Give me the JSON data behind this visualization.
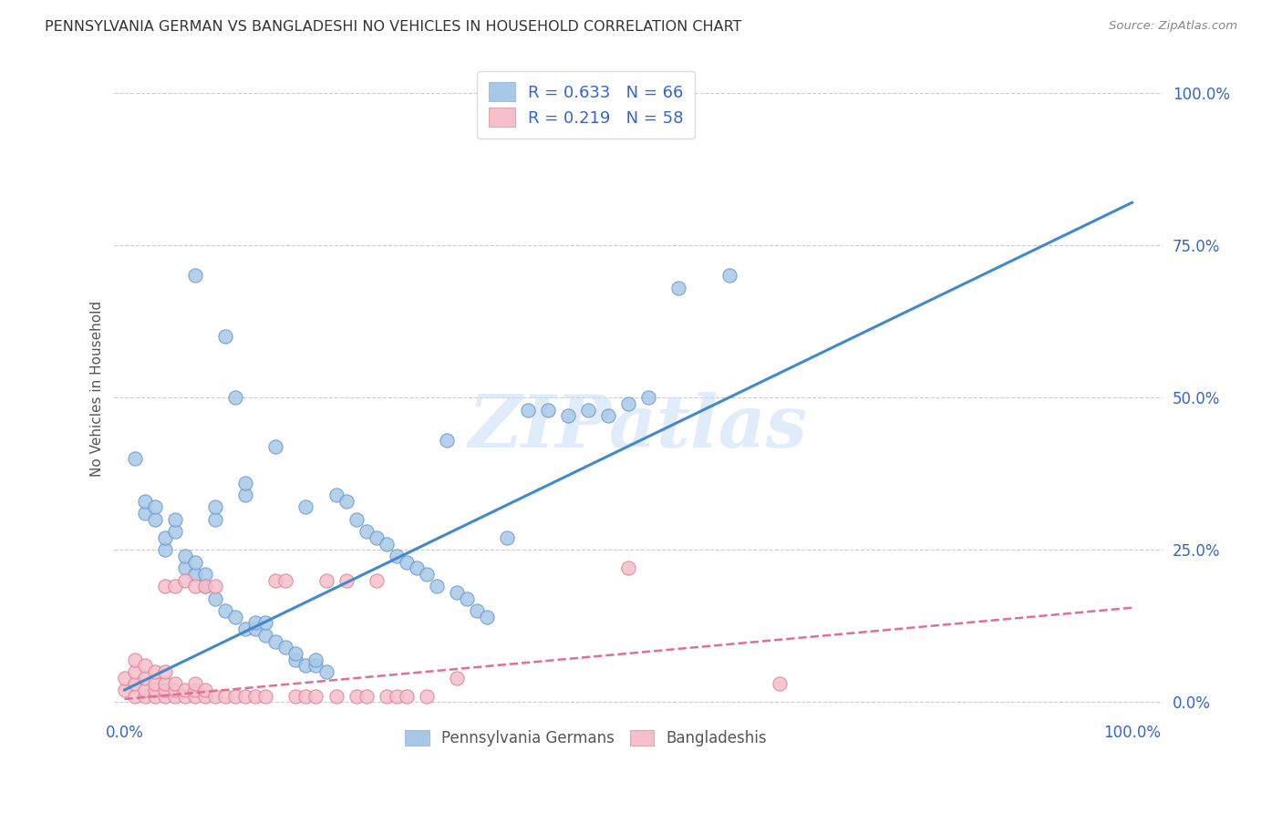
{
  "title": "PENNSYLVANIA GERMAN VS BANGLADESHI NO VEHICLES IN HOUSEHOLD CORRELATION CHART",
  "source": "Source: ZipAtlas.com",
  "ylabel": "No Vehicles in Household",
  "y_tick_labels": [
    "0.0%",
    "25.0%",
    "50.0%",
    "75.0%",
    "100.0%"
  ],
  "y_tick_positions": [
    0.0,
    0.25,
    0.5,
    0.75,
    1.0
  ],
  "x_tick_labels": [
    "0.0%",
    "100.0%"
  ],
  "x_tick_positions": [
    0.0,
    1.0
  ],
  "watermark": "ZIPatlas",
  "legend_r_blue": "R = 0.633",
  "legend_n_blue": "N = 66",
  "legend_r_pink": "R = 0.219",
  "legend_n_pink": "N = 58",
  "blue_dot_color": "#a8c8e8",
  "blue_dot_edge": "#6699cc",
  "pink_dot_color": "#f5bfcc",
  "pink_dot_edge": "#e08090",
  "blue_line_color": "#4488cc",
  "pink_line_color": "#e07090",
  "legend_blue_color": "#a8c8e8",
  "legend_pink_color": "#f5bfcc",
  "axis_tick_color": "#3366cc",
  "grid_color": "#cccccc",
  "blue_line_x0": 0.0,
  "blue_line_y0": 0.02,
  "blue_line_x1": 1.0,
  "blue_line_y1": 0.82,
  "pink_line_x0": 0.0,
  "pink_line_y0": 0.005,
  "pink_line_x1": 1.0,
  "pink_line_y1": 0.155,
  "blue_scatter_x": [
    0.01,
    0.02,
    0.02,
    0.03,
    0.03,
    0.04,
    0.04,
    0.05,
    0.05,
    0.06,
    0.06,
    0.07,
    0.07,
    0.07,
    0.08,
    0.08,
    0.09,
    0.09,
    0.09,
    0.1,
    0.1,
    0.11,
    0.11,
    0.12,
    0.12,
    0.12,
    0.13,
    0.13,
    0.14,
    0.14,
    0.15,
    0.15,
    0.16,
    0.17,
    0.17,
    0.18,
    0.18,
    0.19,
    0.19,
    0.2,
    0.21,
    0.22,
    0.23,
    0.24,
    0.25,
    0.26,
    0.27,
    0.28,
    0.29,
    0.3,
    0.31,
    0.32,
    0.33,
    0.34,
    0.35,
    0.36,
    0.38,
    0.4,
    0.42,
    0.44,
    0.46,
    0.48,
    0.5,
    0.52,
    0.55,
    0.6
  ],
  "blue_scatter_y": [
    0.4,
    0.31,
    0.33,
    0.3,
    0.32,
    0.25,
    0.27,
    0.28,
    0.3,
    0.22,
    0.24,
    0.21,
    0.23,
    0.7,
    0.19,
    0.21,
    0.17,
    0.3,
    0.32,
    0.15,
    0.6,
    0.14,
    0.5,
    0.12,
    0.34,
    0.36,
    0.12,
    0.13,
    0.11,
    0.13,
    0.1,
    0.42,
    0.09,
    0.07,
    0.08,
    0.06,
    0.32,
    0.06,
    0.07,
    0.05,
    0.34,
    0.33,
    0.3,
    0.28,
    0.27,
    0.26,
    0.24,
    0.23,
    0.22,
    0.21,
    0.19,
    0.43,
    0.18,
    0.17,
    0.15,
    0.14,
    0.27,
    0.48,
    0.48,
    0.47,
    0.48,
    0.47,
    0.49,
    0.5,
    0.68,
    0.7
  ],
  "pink_scatter_x": [
    0.0,
    0.0,
    0.01,
    0.01,
    0.01,
    0.01,
    0.02,
    0.02,
    0.02,
    0.02,
    0.03,
    0.03,
    0.03,
    0.03,
    0.04,
    0.04,
    0.04,
    0.04,
    0.04,
    0.05,
    0.05,
    0.05,
    0.05,
    0.06,
    0.06,
    0.06,
    0.07,
    0.07,
    0.07,
    0.07,
    0.08,
    0.08,
    0.08,
    0.09,
    0.09,
    0.1,
    0.11,
    0.12,
    0.13,
    0.14,
    0.15,
    0.16,
    0.17,
    0.18,
    0.19,
    0.2,
    0.21,
    0.22,
    0.23,
    0.24,
    0.25,
    0.26,
    0.27,
    0.28,
    0.3,
    0.33,
    0.5,
    0.65
  ],
  "pink_scatter_y": [
    0.02,
    0.04,
    0.01,
    0.03,
    0.05,
    0.07,
    0.01,
    0.02,
    0.04,
    0.06,
    0.01,
    0.02,
    0.03,
    0.05,
    0.01,
    0.02,
    0.03,
    0.05,
    0.19,
    0.01,
    0.02,
    0.03,
    0.19,
    0.01,
    0.02,
    0.2,
    0.01,
    0.02,
    0.03,
    0.19,
    0.01,
    0.02,
    0.19,
    0.01,
    0.19,
    0.01,
    0.01,
    0.01,
    0.01,
    0.01,
    0.2,
    0.2,
    0.01,
    0.01,
    0.01,
    0.2,
    0.01,
    0.2,
    0.01,
    0.01,
    0.2,
    0.01,
    0.01,
    0.01,
    0.01,
    0.04,
    0.22,
    0.03
  ]
}
